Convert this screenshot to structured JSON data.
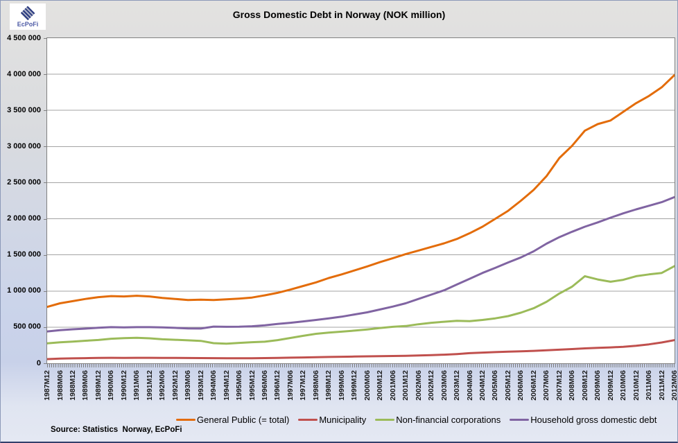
{
  "logo": {
    "text": "EcPoFi"
  },
  "source": "Source: Statistics  Norway, EcPoFi",
  "colors": {
    "general_public": "#E36C0A",
    "municipality": "#C0504D",
    "non_financial": "#9BBB59",
    "household": "#8064A2",
    "gridline": "#A3A3A3",
    "axis": "#808080",
    "plot_background": "#FFFFFF",
    "canvas_top": "#E3E2E0",
    "canvas_bottom": "#C8D1E9"
  },
  "chart_data": {
    "type": "line",
    "title": "Gross Domestic Debt in Norway (NOK million)",
    "xlabel": "",
    "ylabel": "",
    "ylim": [
      0,
      4500000
    ],
    "ytick_interval": 500000,
    "ytick_labels": [
      "0",
      "500 000",
      "1 000 000",
      "1 500 000",
      "2 000 000",
      "2 500 000",
      "3 000 000",
      "3 500 000",
      "4 000 000",
      "4 500 000"
    ],
    "grid": true,
    "legend_position": "bottom",
    "categories": [
      "1987M12",
      "1988M06",
      "1988M12",
      "1989M06",
      "1989M12",
      "1990M06",
      "1990M12",
      "1991M06",
      "1991M12",
      "1992M06",
      "1992M12",
      "1993M06",
      "1993M12",
      "1994M06",
      "1994M12",
      "1995M06",
      "1995M12",
      "1996M06",
      "1996M12",
      "1997M06",
      "1997M12",
      "1998M06",
      "1998M12",
      "1999M06",
      "1999M12",
      "2000M06",
      "2000M12",
      "2001M06",
      "2001M12",
      "2002M06",
      "2002M12",
      "2003M06",
      "2003M12",
      "2004M06",
      "2004M12",
      "2005M06",
      "2005M12",
      "2006M06",
      "2006M12",
      "2007M06",
      "2007M12",
      "2008M06",
      "2008M12",
      "2009M06",
      "2009M12",
      "2010M06",
      "2010M12",
      "2011M06",
      "2011M12",
      "2012M06"
    ],
    "series": [
      {
        "name": "General Public (= total)",
        "color": "#E36C0A",
        "values": [
          780000,
          830000,
          860000,
          890000,
          915000,
          930000,
          925000,
          935000,
          925000,
          905000,
          890000,
          875000,
          880000,
          875000,
          885000,
          895000,
          910000,
          940000,
          975000,
          1020000,
          1070000,
          1120000,
          1180000,
          1230000,
          1285000,
          1340000,
          1400000,
          1455000,
          1510000,
          1560000,
          1610000,
          1660000,
          1720000,
          1800000,
          1890000,
          2000000,
          2110000,
          2250000,
          2400000,
          2590000,
          2840000,
          3010000,
          3220000,
          3310000,
          3360000,
          3480000,
          3600000,
          3700000,
          3820000,
          3990000
        ]
      },
      {
        "name": "Municipality",
        "color": "#C0504D",
        "values": [
          58000,
          64000,
          68000,
          71000,
          74000,
          76000,
          75000,
          76000,
          76000,
          75000,
          74000,
          73000,
          72000,
          71000,
          70000,
          69000,
          70000,
          72000,
          75000,
          78000,
          81000,
          84000,
          87000,
          90000,
          93000,
          96000,
          99000,
          101000,
          104000,
          108000,
          113000,
          119000,
          128000,
          140000,
          148000,
          154000,
          160000,
          166000,
          172000,
          179000,
          188000,
          197000,
          206000,
          214000,
          220000,
          228000,
          242000,
          262000,
          288000,
          320000
        ]
      },
      {
        "name": "Non-financial corporations",
        "color": "#9BBB59",
        "values": [
          275000,
          290000,
          300000,
          312000,
          322000,
          340000,
          348000,
          352000,
          345000,
          332000,
          325000,
          318000,
          310000,
          278000,
          272000,
          282000,
          292000,
          298000,
          320000,
          350000,
          380000,
          408000,
          425000,
          438000,
          452000,
          468000,
          488000,
          505000,
          515000,
          540000,
          560000,
          575000,
          588000,
          582000,
          600000,
          622000,
          652000,
          700000,
          762000,
          850000,
          965000,
          1060000,
          1205000,
          1160000,
          1128000,
          1155000,
          1205000,
          1230000,
          1250000,
          1345000
        ]
      },
      {
        "name": "Household gross domestic debt",
        "color": "#8064A2",
        "values": [
          440000,
          458000,
          470000,
          480000,
          492000,
          500000,
          497000,
          500000,
          500000,
          496000,
          490000,
          483000,
          481000,
          508000,
          505000,
          506000,
          512000,
          525000,
          545000,
          560000,
          580000,
          600000,
          622000,
          645000,
          675000,
          705000,
          745000,
          785000,
          830000,
          890000,
          950000,
          1010000,
          1090000,
          1170000,
          1250000,
          1320000,
          1395000,
          1465000,
          1550000,
          1655000,
          1745000,
          1820000,
          1890000,
          1950000,
          2015000,
          2075000,
          2130000,
          2180000,
          2230000,
          2300000
        ]
      }
    ]
  }
}
